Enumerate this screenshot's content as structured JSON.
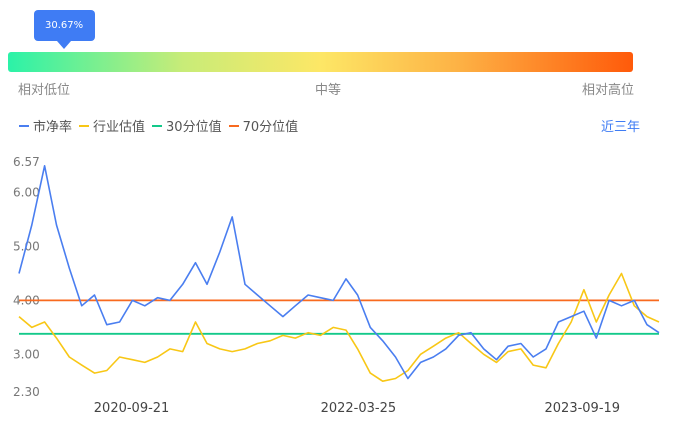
{
  "indicator": {
    "value_label": "30.67%",
    "position_fraction": 0.3067
  },
  "scale": {
    "low": "相对低位",
    "mid": "中等",
    "high": "相对高位"
  },
  "legend": [
    {
      "label": "市净率",
      "color": "#4a7ef0"
    },
    {
      "label": "行业估值",
      "color": "#f8c716"
    },
    {
      "label": "30分位值",
      "color": "#13c98a"
    },
    {
      "label": "70分位值",
      "color": "#f86a1f"
    }
  ],
  "range_label": "近三年",
  "chart_data": {
    "type": "line",
    "y_ticks": [
      "6.57",
      "6.00",
      "5.00",
      "4.00",
      "3.00",
      "2.30"
    ],
    "ylim": [
      2.3,
      6.57
    ],
    "x_ticks": [
      "2020-09-21",
      "2022-03-25",
      "2023-09-19"
    ],
    "x": [
      "2019-12-23",
      "2020-01-23",
      "2020-02-23",
      "2020-03-23",
      "2020-04-23",
      "2020-05-23",
      "2020-06-23",
      "2020-07-23",
      "2020-08-23",
      "2020-09-23",
      "2020-10-23",
      "2020-11-23",
      "2020-12-23",
      "2021-01-23",
      "2021-02-23",
      "2021-03-23",
      "2021-04-23",
      "2021-05-23",
      "2021-06-23",
      "2021-07-23",
      "2021-08-23",
      "2021-09-23",
      "2021-10-23",
      "2021-11-23",
      "2021-12-23",
      "2022-01-23",
      "2022-02-23",
      "2022-03-23",
      "2022-04-23",
      "2022-05-23",
      "2022-06-23",
      "2022-07-23",
      "2022-08-23",
      "2022-09-23",
      "2022-10-23",
      "2022-11-23",
      "2022-12-23",
      "2023-01-23",
      "2023-02-23",
      "2023-03-23",
      "2023-04-23",
      "2023-05-23",
      "2023-06-23",
      "2023-07-23",
      "2023-08-23",
      "2023-09-23",
      "2023-10-23",
      "2023-11-23",
      "2023-12-23",
      "2024-01-23",
      "2024-02-23",
      "2024-03-23"
    ],
    "series": [
      {
        "name": "市净率",
        "values": [
          4.5,
          5.4,
          6.5,
          5.4,
          4.6,
          3.9,
          4.1,
          3.55,
          3.6,
          4.0,
          3.9,
          4.05,
          4.0,
          4.3,
          4.7,
          4.3,
          4.9,
          5.55,
          4.3,
          4.1,
          3.9,
          3.7,
          3.9,
          4.1,
          4.05,
          4.0,
          4.4,
          4.1,
          3.5,
          3.25,
          2.95,
          2.55,
          2.85,
          2.95,
          3.1,
          3.35,
          3.4,
          3.1,
          2.9,
          3.15,
          3.2,
          2.95,
          3.1,
          3.6,
          3.7,
          3.8,
          3.3,
          4.0,
          3.9,
          4.0,
          3.55,
          3.4
        ]
      },
      {
        "name": "行业估值",
        "values": [
          3.7,
          3.5,
          3.6,
          3.3,
          2.95,
          2.8,
          2.65,
          2.7,
          2.95,
          2.9,
          2.85,
          2.95,
          3.1,
          3.05,
          3.6,
          3.2,
          3.1,
          3.05,
          3.1,
          3.2,
          3.25,
          3.35,
          3.3,
          3.4,
          3.35,
          3.5,
          3.45,
          3.1,
          2.65,
          2.5,
          2.55,
          2.7,
          3.0,
          3.15,
          3.3,
          3.4,
          3.2,
          3.0,
          2.85,
          3.05,
          3.1,
          2.8,
          2.75,
          3.2,
          3.6,
          4.2,
          3.6,
          4.1,
          4.5,
          3.9,
          3.7,
          3.6
        ]
      },
      {
        "name": "30分位值",
        "values": [
          3.38,
          3.38,
          3.38,
          3.38,
          3.38,
          3.38,
          3.38,
          3.38,
          3.38,
          3.38,
          3.38,
          3.38,
          3.38,
          3.38,
          3.38,
          3.38,
          3.38,
          3.38,
          3.38,
          3.38,
          3.38,
          3.38,
          3.38,
          3.38,
          3.38,
          3.38,
          3.38,
          3.38,
          3.38,
          3.38,
          3.38,
          3.38,
          3.38,
          3.38,
          3.38,
          3.38,
          3.38,
          3.38,
          3.38,
          3.38,
          3.38,
          3.38,
          3.38,
          3.38,
          3.38,
          3.38,
          3.38,
          3.38,
          3.38,
          3.38,
          3.38,
          3.38
        ]
      },
      {
        "name": "70分位值",
        "values": [
          4.0,
          4.0,
          4.0,
          4.0,
          4.0,
          4.0,
          4.0,
          4.0,
          4.0,
          4.0,
          4.0,
          4.0,
          4.0,
          4.0,
          4.0,
          4.0,
          4.0,
          4.0,
          4.0,
          4.0,
          4.0,
          4.0,
          4.0,
          4.0,
          4.0,
          4.0,
          4.0,
          4.0,
          4.0,
          4.0,
          4.0,
          4.0,
          4.0,
          4.0,
          4.0,
          4.0,
          4.0,
          4.0,
          4.0,
          4.0,
          4.0,
          4.0,
          4.0,
          4.0,
          4.0,
          4.0,
          4.0,
          4.0,
          4.0,
          4.0,
          4.0,
          4.0
        ]
      }
    ],
    "grid": false,
    "legend_position": "top-left"
  }
}
